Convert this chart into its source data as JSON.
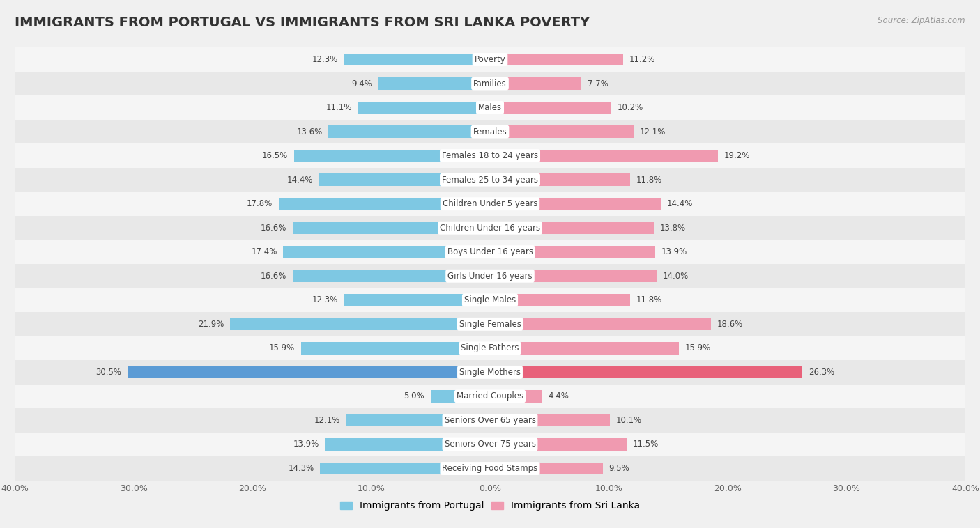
{
  "title": "IMMIGRANTS FROM PORTUGAL VS IMMIGRANTS FROM SRI LANKA POVERTY",
  "source": "Source: ZipAtlas.com",
  "categories": [
    "Poverty",
    "Families",
    "Males",
    "Females",
    "Females 18 to 24 years",
    "Females 25 to 34 years",
    "Children Under 5 years",
    "Children Under 16 years",
    "Boys Under 16 years",
    "Girls Under 16 years",
    "Single Males",
    "Single Females",
    "Single Fathers",
    "Single Mothers",
    "Married Couples",
    "Seniors Over 65 years",
    "Seniors Over 75 years",
    "Receiving Food Stamps"
  ],
  "portugal_values": [
    12.3,
    9.4,
    11.1,
    13.6,
    16.5,
    14.4,
    17.8,
    16.6,
    17.4,
    16.6,
    12.3,
    21.9,
    15.9,
    30.5,
    5.0,
    12.1,
    13.9,
    14.3
  ],
  "srilanka_values": [
    11.2,
    7.7,
    10.2,
    12.1,
    19.2,
    11.8,
    14.4,
    13.8,
    13.9,
    14.0,
    11.8,
    18.6,
    15.9,
    26.3,
    4.4,
    10.1,
    11.5,
    9.5
  ],
  "portugal_color": "#7ec8e3",
  "srilanka_color": "#f09ab0",
  "row_colors": [
    "#f5f5f5",
    "#e8e8e8"
  ],
  "single_mothers_color": "#5b9bd5",
  "single_mothers_sri_color": "#e8617a",
  "background_color": "#f0f0f0",
  "xlim": 40.0,
  "bar_height": 0.52,
  "legend_labels": [
    "Immigrants from Portugal",
    "Immigrants from Sri Lanka"
  ],
  "value_fontsize": 8.5,
  "category_fontsize": 8.5,
  "title_fontsize": 14
}
